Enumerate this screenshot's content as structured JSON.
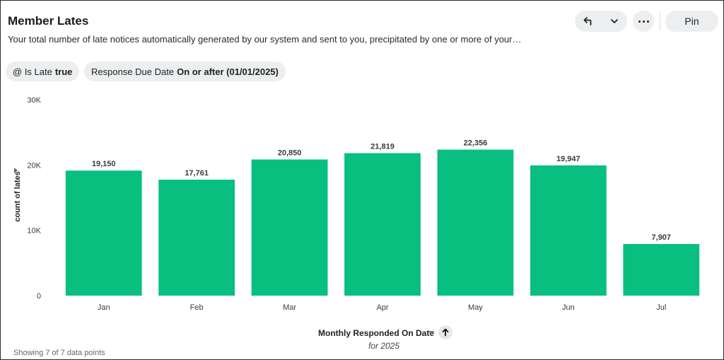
{
  "header": {
    "title": "Member Lates",
    "subtitle": "Your total number of late notices automatically generated by our system and sent to you, precipitated by one or more of your…",
    "pin_label": "Pin"
  },
  "filters": [
    {
      "label": "@ Is Late",
      "value": "true"
    },
    {
      "label": "Response Due Date",
      "value": "On or after (01/01/2025)"
    }
  ],
  "icons": {
    "undo": "undo-arrow-icon",
    "dropdown": "chevron-down-icon",
    "more": "more-horizontal-icon",
    "sort": "sort-ascending-icon"
  },
  "colors": {
    "bar": "#08bf80",
    "axis_text": "#3a3a3a",
    "chip_bg": "#eceeef"
  },
  "chart_data": {
    "type": "bar",
    "categories": [
      "Jan",
      "Feb",
      "Mar",
      "Apr",
      "May",
      "Jun",
      "Jul"
    ],
    "values": [
      19150,
      17761,
      20850,
      21819,
      22356,
      19947,
      7907
    ],
    "value_labels": [
      "19,150",
      "17,761",
      "20,850",
      "21,819",
      "22,356",
      "19,947",
      "7,907"
    ],
    "ylim": [
      0,
      30000
    ],
    "yticks": [
      0,
      10000,
      20000,
      30000
    ],
    "ytick_labels": [
      "0",
      "10K",
      "20K",
      "30K"
    ],
    "xlabel": "Monthly Responded On Date",
    "xlabel_sub": "for 2025",
    "ylabel": "count of lates",
    "grid": false,
    "legend": "none"
  },
  "footer": {
    "text": "Showing 7 of 7 data points"
  }
}
